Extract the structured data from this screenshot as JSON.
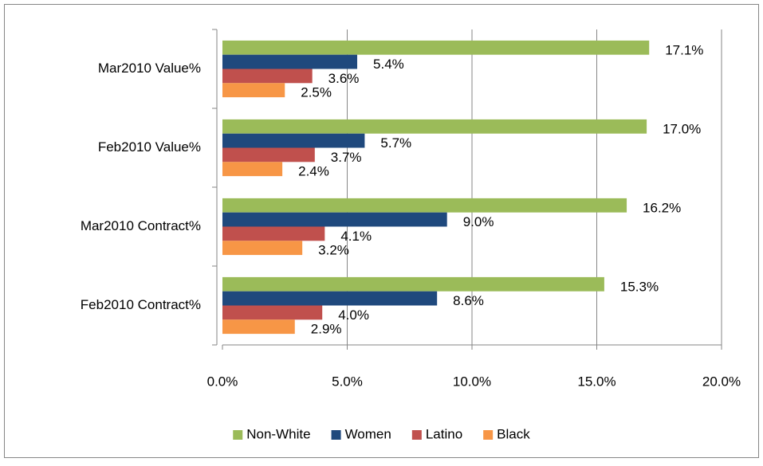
{
  "chart_data": {
    "type": "bar",
    "orientation": "horizontal",
    "categories": [
      "Mar2010 Value%",
      "Feb2010 Value%",
      "Mar2010 Contract%",
      "Feb2010 Contract%"
    ],
    "series": [
      {
        "name": "Non-White",
        "color": "#9bbb59",
        "values": [
          17.1,
          17.0,
          16.2,
          15.3
        ],
        "value_labels": [
          "17.1%",
          "17.0%",
          "16.2%",
          "15.3%"
        ]
      },
      {
        "name": "Women",
        "color": "#1f497d",
        "values": [
          5.4,
          5.7,
          9.0,
          8.6
        ],
        "value_labels": [
          "5.4%",
          "5.7%",
          "9.0%",
          "8.6%"
        ]
      },
      {
        "name": "Latino",
        "color": "#c0504d",
        "values": [
          3.6,
          3.7,
          4.1,
          4.0
        ],
        "value_labels": [
          "3.6%",
          "3.7%",
          "4.1%",
          "4.0%"
        ]
      },
      {
        "name": "Black",
        "color": "#f79646",
        "values": [
          2.5,
          2.4,
          3.2,
          2.9
        ],
        "value_labels": [
          "2.5%",
          "2.4%",
          "3.2%",
          "2.9%"
        ]
      }
    ],
    "xlim": [
      0,
      20
    ],
    "xticks": [
      {
        "value": 0,
        "label": "0.0%"
      },
      {
        "value": 5,
        "label": "5.0%"
      },
      {
        "value": 10,
        "label": "10.0%"
      },
      {
        "value": 15,
        "label": "15.0%"
      },
      {
        "value": 20,
        "label": "20.0%"
      }
    ],
    "grid": true,
    "legend": "bottom"
  }
}
